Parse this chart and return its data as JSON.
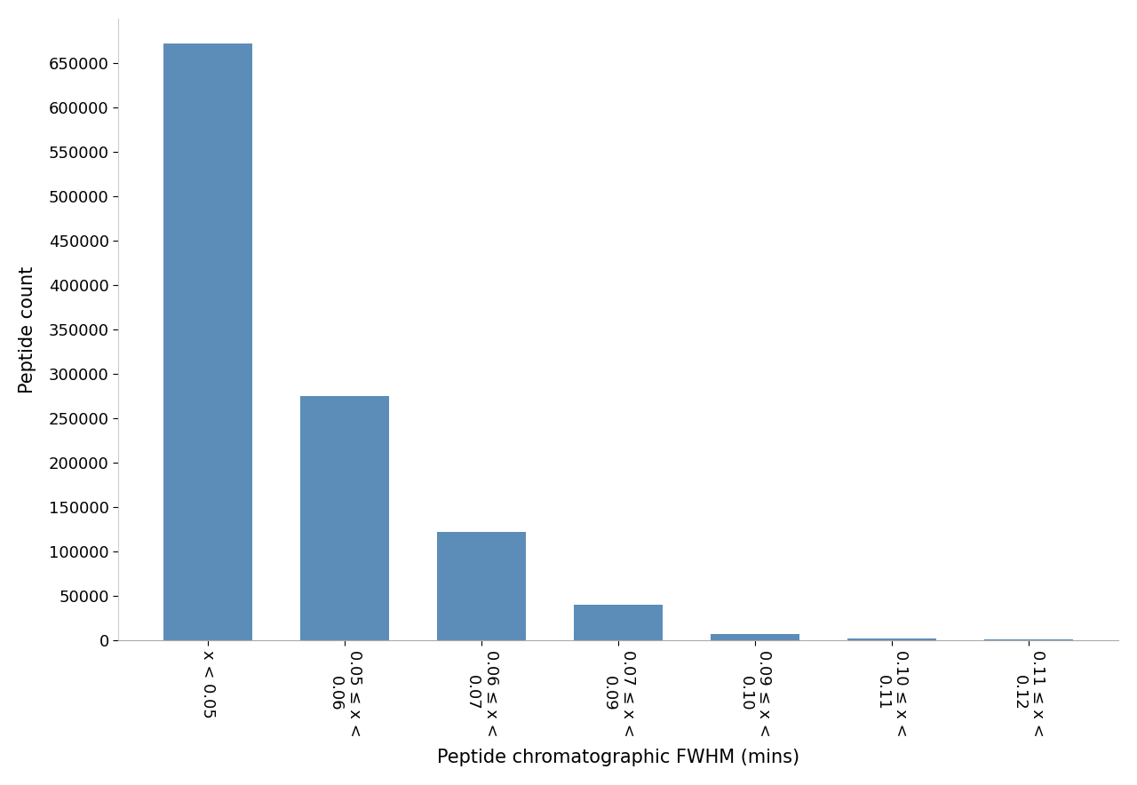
{
  "categories": [
    "x < 0.05",
    "0.05 ≤ x <\n0.06",
    "0.06 ≤ x <\n0.07",
    "0.07 ≤ x <\n0.09",
    "0.09 ≤ x <\n0.10",
    "0.10 ≤ x <\n0.11",
    "0.11 ≤ x <\n0.12"
  ],
  "values": [
    672000,
    275000,
    122000,
    40000,
    7000,
    2000,
    1000
  ],
  "bar_color": "#5b8db8",
  "xlabel": "Peptide chromatographic FWHM (mins)",
  "ylabel": "Peptide count",
  "ylim": [
    0,
    700000
  ],
  "yticks": [
    0,
    50000,
    100000,
    150000,
    200000,
    250000,
    300000,
    350000,
    400000,
    450000,
    500000,
    550000,
    600000,
    650000
  ],
  "background_color": "#ffffff",
  "xlabel_fontsize": 15,
  "ylabel_fontsize": 15,
  "tick_fontsize": 13,
  "bar_width": 0.65
}
